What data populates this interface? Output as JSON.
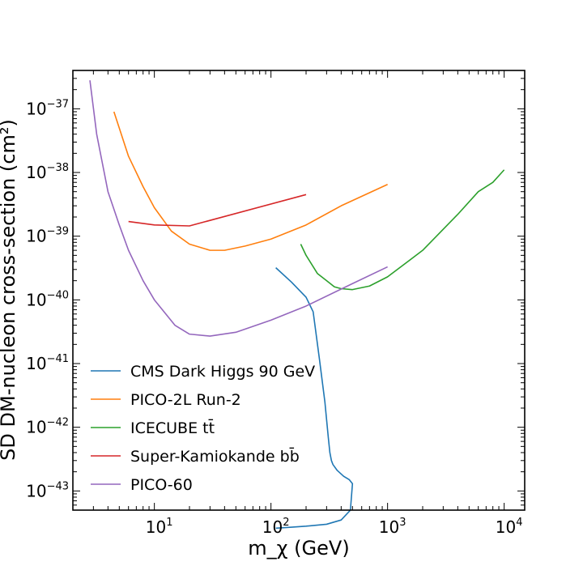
{
  "chart_data": {
    "type": "line",
    "title": "",
    "xlabel": "m_χ (GeV)",
    "ylabel": "SD DM-nucleon cross-section (cm²)",
    "xscale": "log",
    "yscale": "log",
    "xlim": [
      2,
      15000
    ],
    "ylim": [
      5e-44,
      4e-37
    ],
    "grid": false,
    "legend": "lower-left",
    "xticks": [
      {
        "base": "10",
        "exp": "1"
      },
      {
        "base": "10",
        "exp": "2"
      },
      {
        "base": "10",
        "exp": "3"
      },
      {
        "base": "10",
        "exp": "4"
      }
    ],
    "yticks": [
      {
        "base": "10",
        "exp": "−37"
      },
      {
        "base": "10",
        "exp": "−38"
      },
      {
        "base": "10",
        "exp": "−39"
      },
      {
        "base": "10",
        "exp": "−40"
      },
      {
        "base": "10",
        "exp": "−41"
      },
      {
        "base": "10",
        "exp": "−42"
      },
      {
        "base": "10",
        "exp": "−43"
      }
    ],
    "series": [
      {
        "name": "CMS Dark Higgs 90 GeV",
        "color": "#1f77b4",
        "x": [
          110,
          150,
          200,
          230,
          260,
          290,
          310,
          320,
          330,
          340,
          370,
          420,
          470,
          500,
          480,
          400,
          300,
          200,
          150,
          110
        ],
        "y": [
          3.2e-40,
          1.9e-40,
          1.1e-40,
          6.5e-41,
          1.2e-41,
          2.5e-42,
          7e-43,
          4e-43,
          3e-43,
          2.6e-43,
          2.1e-43,
          1.7e-43,
          1.5e-43,
          1.3e-43,
          5e-44,
          3.5e-44,
          3e-44,
          2.8e-44,
          2.7e-44,
          2.6e-44
        ]
      },
      {
        "name": "PICO-2L Run-2",
        "color": "#ff7f0e",
        "x": [
          4.5,
          6,
          8,
          10,
          14,
          20,
          30,
          40,
          60,
          100,
          200,
          400,
          1000
        ],
        "y": [
          9e-38,
          1.8e-38,
          6e-39,
          2.8e-39,
          1.2e-39,
          7.5e-40,
          6e-40,
          6e-40,
          7e-40,
          9e-40,
          1.5e-39,
          3e-39,
          6.5e-39
        ]
      },
      {
        "name": "ICECUBE tt̄",
        "color": "#2ca02c",
        "x": [
          180,
          200,
          250,
          300,
          350,
          400,
          500,
          700,
          1000,
          2000,
          4000,
          6000,
          8000,
          10000
        ],
        "y": [
          7.5e-40,
          5e-40,
          2.6e-40,
          2e-40,
          1.6e-40,
          1.5e-40,
          1.45e-40,
          1.65e-40,
          2.3e-40,
          6e-40,
          2.2e-39,
          5e-39,
          7e-39,
          1.1e-38
        ]
      },
      {
        "name": "Super-Kamiokande bb̄",
        "color": "#d62728",
        "x": [
          6,
          10,
          20,
          200
        ],
        "y": [
          1.7e-39,
          1.5e-39,
          1.45e-39,
          4.5e-39
        ]
      },
      {
        "name": "PICO-60",
        "color": "#9467bd",
        "x": [
          2.8,
          3.2,
          4,
          5,
          6,
          8,
          10,
          15,
          20,
          30,
          50,
          100,
          200,
          500,
          1000
        ],
        "y": [
          2.8e-37,
          4e-38,
          5e-39,
          1.5e-39,
          6e-40,
          2e-40,
          1e-40,
          4e-41,
          2.9e-41,
          2.7e-41,
          3.1e-41,
          4.8e-41,
          8e-41,
          1.8e-40,
          3.3e-40
        ]
      }
    ]
  }
}
